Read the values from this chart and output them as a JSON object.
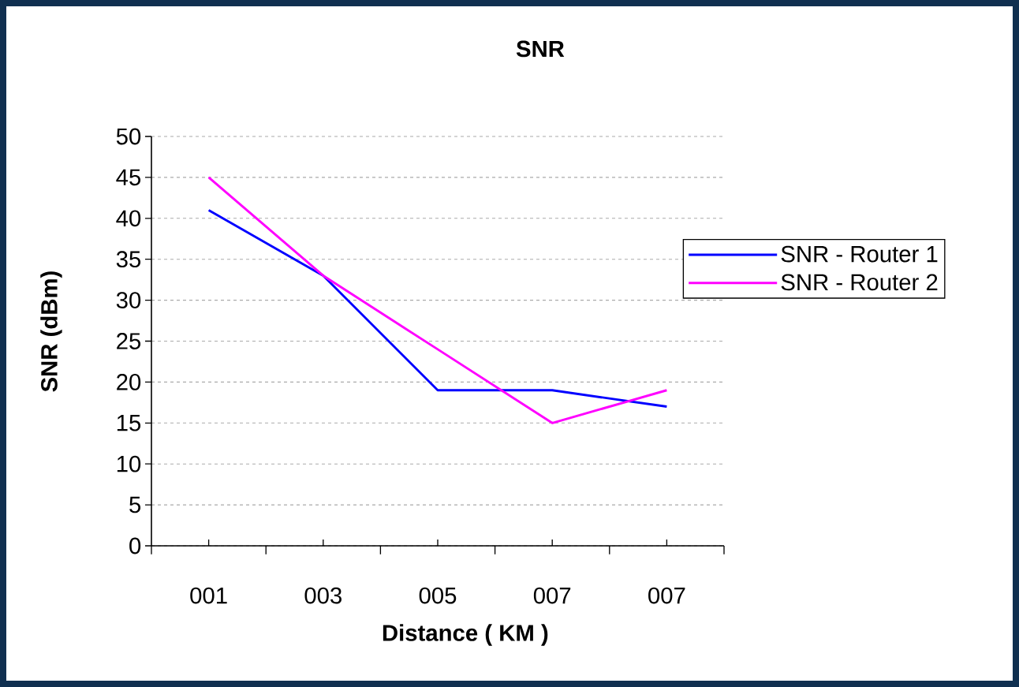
{
  "chart_data": {
    "type": "line",
    "title": "SNR",
    "xlabel": "Distance ( KM )",
    "ylabel": "SNR  (dBm)",
    "categories": [
      "001",
      "003",
      "005",
      "007",
      "007"
    ],
    "series": [
      {
        "name": "SNR - Router 1",
        "color": "#0000ff",
        "values": [
          41,
          33,
          19,
          19,
          17
        ]
      },
      {
        "name": "SNR - Router 2",
        "color": "#ff00ff",
        "values": [
          45,
          33,
          24,
          15,
          19
        ]
      }
    ],
    "ylim": [
      0,
      50
    ],
    "yticks": [
      0,
      5,
      10,
      15,
      20,
      25,
      30,
      35,
      40,
      45,
      50
    ],
    "grid": "y",
    "legend": "right",
    "marker": "none",
    "line_style": "solid"
  }
}
